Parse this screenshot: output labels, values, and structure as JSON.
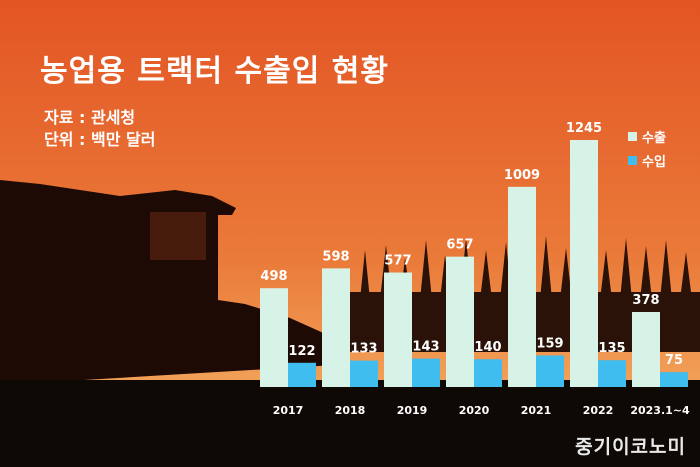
{
  "title": "농업용 트랙터 수출입 현황",
  "source_line": "자료 : 관세청",
  "unit_line": "단위 : 백만 달러",
  "logo_text": "중기이코노미",
  "colors": {
    "export": "#d7f2e6",
    "import": "#3fbdee",
    "bg_top": "#e05525",
    "bg_bottom": "#f5b66a"
  },
  "chart_data": {
    "type": "bar",
    "categories": [
      "2017",
      "2018",
      "2019",
      "2020",
      "2021",
      "2022",
      "2023.1~4"
    ],
    "series": [
      {
        "name": "수출",
        "values": [
          498,
          598,
          577,
          657,
          1009,
          1245,
          378
        ]
      },
      {
        "name": "수입",
        "values": [
          122,
          133,
          143,
          140,
          159,
          135,
          75
        ]
      }
    ],
    "ylim": [
      0,
      1300
    ],
    "legend": "top-right",
    "grid": false
  }
}
